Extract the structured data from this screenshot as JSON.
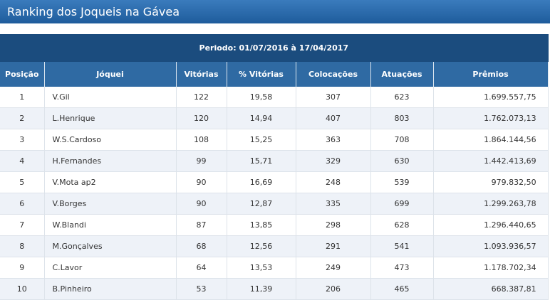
{
  "header": {
    "title": "Ranking dos Joqueis na Gávea"
  },
  "table": {
    "period": "Periodo: 01/07/2016 à 17/04/2017",
    "columns": [
      "Posição",
      "Jóquei",
      "Vitórias",
      "% Vitórias",
      "Colocações",
      "Atuações",
      "Prêmios"
    ],
    "rows": [
      [
        "1",
        "V.Gil",
        "122",
        "19,58",
        "307",
        "623",
        "1.699.557,75"
      ],
      [
        "2",
        "L.Henrique",
        "120",
        "14,94",
        "407",
        "803",
        "1.762.073,13"
      ],
      [
        "3",
        "W.S.Cardoso",
        "108",
        "15,25",
        "363",
        "708",
        "1.864.144,56"
      ],
      [
        "4",
        "H.Fernandes",
        "99",
        "15,71",
        "329",
        "630",
        "1.442.413,69"
      ],
      [
        "5",
        "V.Mota ap2",
        "90",
        "16,69",
        "248",
        "539",
        "979.832,50"
      ],
      [
        "6",
        "V.Borges",
        "90",
        "12,87",
        "335",
        "699",
        "1.299.263,78"
      ],
      [
        "7",
        "W.Blandi",
        "87",
        "13,85",
        "298",
        "628",
        "1.296.440,65"
      ],
      [
        "8",
        "M.Gonçalves",
        "68",
        "12,56",
        "291",
        "541",
        "1.093.936,57"
      ],
      [
        "9",
        "C.Lavor",
        "64",
        "13,53",
        "249",
        "473",
        "1.178.702,34"
      ],
      [
        "10",
        "B.Pinheiro",
        "53",
        "11,39",
        "206",
        "465",
        "668.387,81"
      ]
    ]
  }
}
